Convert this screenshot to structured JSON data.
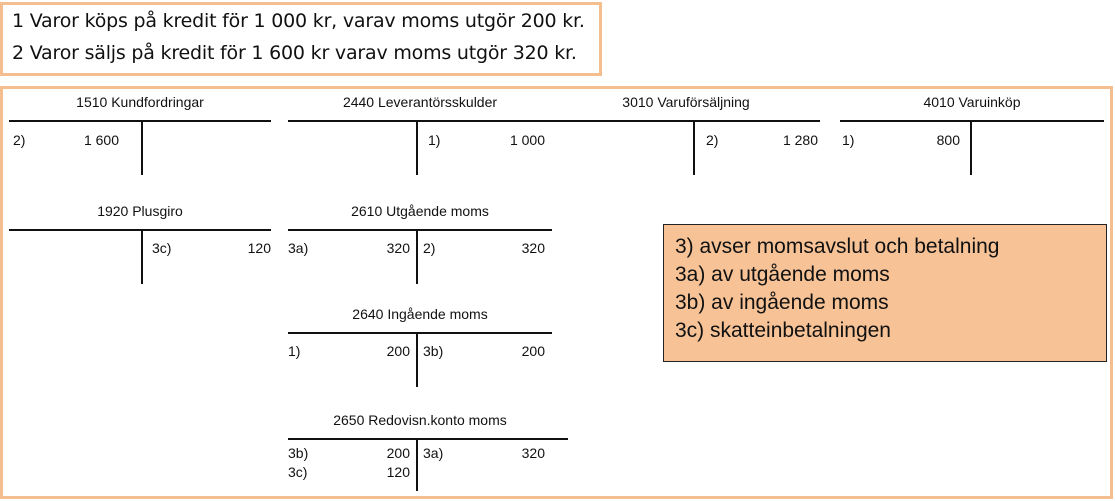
{
  "statements": [
    "1 Varor köps på kredit för 1 000 kr, varav moms utgör 200 kr.",
    "2 Varor säljs på kredit för 1 600 kr varav moms utgör 320 kr."
  ],
  "accounts": {
    "kundfordringar": {
      "title": "1510 Kundfordringar",
      "debit_ref": "2)",
      "debit_amount": "1 600"
    },
    "leverantorsskulder": {
      "title": "2440 Leverantörsskulder",
      "credit_ref": "1)",
      "credit_amount": "1 000"
    },
    "varuforsaljning": {
      "title": "3010 Varuförsäljning",
      "credit_ref": "2)",
      "credit_amount": "1 280"
    },
    "varuinkop": {
      "title": "4010 Varuinköp",
      "debit_ref": "1)",
      "debit_amount": "800"
    },
    "plusgiro": {
      "title": "1920 Plusgiro",
      "credit_ref": "3c)",
      "credit_amount": "120"
    },
    "utgaende_moms": {
      "title": "2610 Utgående moms",
      "debit_ref": "3a)",
      "debit_amount": "320",
      "credit_ref": "2)",
      "credit_amount": "320"
    },
    "ingaende_moms": {
      "title": "2640 Ingående moms",
      "debit_ref": "1)",
      "debit_amount": "200",
      "credit_ref": "3b)",
      "credit_amount": "200"
    },
    "redovisn_moms": {
      "title": "2650 Redovisn.konto moms",
      "debit_ref_1": "3b)",
      "debit_amount_1": "200",
      "debit_ref_2": "3c)",
      "debit_amount_2": "120",
      "credit_ref": "3a)",
      "credit_amount": "320"
    }
  },
  "note": {
    "line1": "3) avser momsavslut och betalning",
    "line2": "3a) av utgående moms",
    "line3": "3b) av ingående moms",
    "line4": "3c) skatteinbetalningen"
  },
  "colors": {
    "frame": "#f4be8e",
    "note_fill": "#f6c296"
  }
}
